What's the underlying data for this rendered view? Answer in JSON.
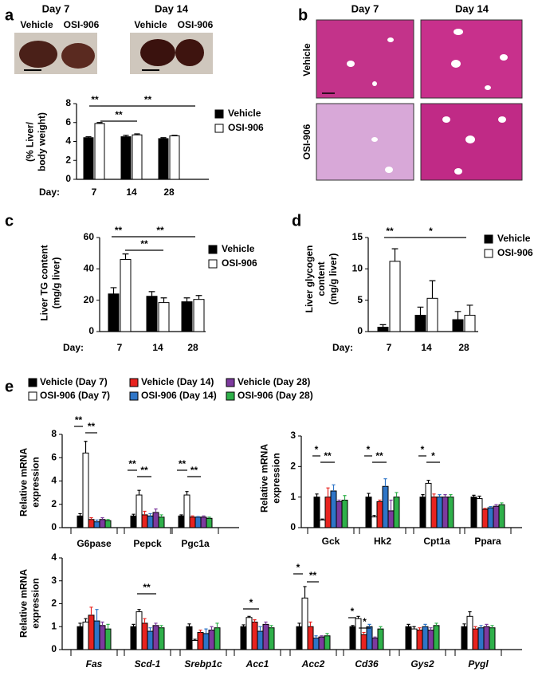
{
  "panel_labels": [
    "a",
    "b",
    "c",
    "d",
    "e"
  ],
  "photos": {
    "days": [
      "Day 7",
      "Day 14"
    ],
    "groups": [
      "Vehicle",
      "OSI-906"
    ]
  },
  "histology": {
    "days": [
      "Day 7",
      "Day 14"
    ],
    "groups": [
      "Vehicle",
      "OSI-906"
    ]
  },
  "chart_data": [
    {
      "type": "bar",
      "ylabel": [
        "(% Liver/",
        "body weight)"
      ],
      "x_label": "Day:",
      "categories": [
        "7",
        "14",
        "28"
      ],
      "series": [
        {
          "name": "Vehicle",
          "color": "#000000",
          "values": [
            4.4,
            4.5,
            4.3
          ],
          "errors": [
            0.1,
            0.15,
            0.1
          ]
        },
        {
          "name": "OSI-906",
          "color": "#ffffff",
          "values": [
            5.9,
            4.7,
            4.6
          ],
          "errors": [
            0.1,
            0.1,
            0.05
          ]
        }
      ],
      "ylim": [
        0,
        8
      ],
      "yticks": [
        0,
        2,
        4,
        6,
        8
      ],
      "annotations": [
        "**",
        "**",
        "**"
      ]
    },
    {
      "type": "bar",
      "ylabel": [
        "Liver TG content",
        "(mg/g liver)"
      ],
      "x_label": "Day:",
      "categories": [
        "7",
        "14",
        "28"
      ],
      "series": [
        {
          "name": "Vehicle",
          "color": "#000000",
          "values": [
            24,
            22.5,
            19
          ],
          "errors": [
            4,
            3,
            2.5
          ]
        },
        {
          "name": "OSI-906",
          "color": "#ffffff",
          "values": [
            46,
            18.5,
            20.5
          ],
          "errors": [
            3.5,
            3,
            2.5
          ]
        }
      ],
      "ylim": [
        0,
        60
      ],
      "yticks": [
        0,
        20,
        40,
        60
      ],
      "annotations": [
        "**",
        "**",
        "**"
      ]
    },
    {
      "type": "bar",
      "ylabel": [
        "Liver glycogen",
        "content",
        "(mg/g liver)"
      ],
      "x_label": "Day:",
      "categories": [
        "7",
        "14",
        "28"
      ],
      "series": [
        {
          "name": "Vehicle",
          "color": "#000000",
          "values": [
            0.7,
            2.6,
            1.9
          ],
          "errors": [
            0.4,
            1.3,
            1.3
          ]
        },
        {
          "name": "OSI-906",
          "color": "#ffffff",
          "values": [
            11.2,
            5.3,
            2.6
          ],
          "errors": [
            2,
            2.8,
            1.6
          ]
        }
      ],
      "ylim": [
        0,
        15
      ],
      "yticks": [
        0,
        5,
        10,
        15
      ],
      "annotations": [
        "**",
        "*"
      ]
    },
    {
      "type": "bar",
      "ylabel": [
        "Relative mRNA",
        "expression"
      ],
      "categories": [
        "G6pase",
        "Pepck",
        "Pgc1a"
      ],
      "series": [
        {
          "name": "Vehicle (Day 7)",
          "color": "#000000",
          "values": [
            1,
            1,
            1
          ],
          "errors": [
            0.2,
            0.15,
            0.1
          ]
        },
        {
          "name": "OSI-906 (Day 7)",
          "color": "#ffffff",
          "values": [
            6.4,
            2.8,
            2.8
          ],
          "errors": [
            1.0,
            0.4,
            0.3
          ]
        },
        {
          "name": "Vehicle (Day 14)",
          "color": "#e8231f",
          "values": [
            0.7,
            1.1,
            0.9
          ],
          "errors": [
            0.15,
            0.3,
            0.1
          ]
        },
        {
          "name": "OSI-906 (Day 14)",
          "color": "#2e75c7",
          "values": [
            0.5,
            1.0,
            0.9
          ],
          "errors": [
            0.15,
            0.2,
            0.05
          ]
        },
        {
          "name": "Vehicle (Day 28)",
          "color": "#7d3a9e",
          "values": [
            0.7,
            1.3,
            0.9
          ],
          "errors": [
            0.15,
            0.3,
            0.1
          ]
        },
        {
          "name": "OSI-906 (Day 28)",
          "color": "#2fb04a",
          "values": [
            0.6,
            0.9,
            0.8
          ],
          "errors": [
            0.1,
            0.2,
            0.1
          ]
        }
      ],
      "ylim": [
        0,
        8
      ],
      "yticks": [
        0,
        2,
        4,
        6,
        8
      ],
      "annotations": [
        "**",
        "**",
        "**",
        "**",
        "**",
        "**"
      ]
    },
    {
      "type": "bar",
      "ylabel": [
        "Relative mRNA",
        "expression"
      ],
      "categories": [
        "Gck",
        "Hk2",
        "Cpt1a",
        "Ppara"
      ],
      "series": [
        {
          "color": "#000000",
          "values": [
            1,
            1,
            1,
            1
          ],
          "errors": [
            0.1,
            0.12,
            0.08,
            0.06
          ]
        },
        {
          "color": "#ffffff",
          "values": [
            0.25,
            0.35,
            1.45,
            0.95
          ],
          "errors": [
            0.03,
            0.05,
            0.1,
            0.08
          ]
        },
        {
          "color": "#e8231f",
          "values": [
            1.0,
            0.85,
            1.0,
            0.6
          ],
          "errors": [
            0.3,
            0.05,
            0.1,
            0.03
          ]
        },
        {
          "color": "#2e75c7",
          "values": [
            1.2,
            1.35,
            1.0,
            0.65
          ],
          "errors": [
            0.2,
            0.25,
            0.08,
            0.04
          ]
        },
        {
          "color": "#7d3a9e",
          "values": [
            0.85,
            0.55,
            1.0,
            0.7
          ],
          "errors": [
            0.05,
            0.35,
            0.08,
            0.05
          ]
        },
        {
          "color": "#2fb04a",
          "values": [
            0.9,
            1.0,
            1.0,
            0.75
          ],
          "errors": [
            0.15,
            0.15,
            0.08,
            0.06
          ]
        }
      ],
      "ylim": [
        0,
        3
      ],
      "yticks": [
        0,
        1,
        2,
        3
      ],
      "annotations": [
        "*",
        "**",
        "*",
        "**",
        "*",
        "*"
      ]
    },
    {
      "type": "bar",
      "ylabel": [
        "Relative mRNA",
        "expression"
      ],
      "categories": [
        "Fas",
        "Scd-1",
        "Srebp1c",
        "Acc1",
        "Acc2",
        "Cd36",
        "Gys2",
        "Pygl"
      ],
      "series": [
        {
          "color": "#000000",
          "values": [
            1,
            1,
            1,
            1,
            1,
            1,
            1,
            1
          ],
          "errors": [
            0.15,
            0.1,
            0.12,
            0.08,
            0.15,
            0.05,
            0.1,
            0.12
          ]
        },
        {
          "color": "#ffffff",
          "values": [
            1.2,
            1.65,
            0.4,
            1.4,
            2.25,
            1.35,
            0.9,
            1.45
          ],
          "errors": [
            0.15,
            0.1,
            0.05,
            0.05,
            0.5,
            0.1,
            0.1,
            0.2
          ]
        },
        {
          "color": "#e8231f",
          "values": [
            1.5,
            1.15,
            0.75,
            1.2,
            1.0,
            0.65,
            0.85,
            0.9
          ],
          "errors": [
            0.35,
            0.2,
            0.1,
            0.1,
            0.2,
            0.1,
            0.1,
            0.1
          ]
        },
        {
          "color": "#2e75c7",
          "values": [
            1.25,
            0.8,
            0.7,
            0.8,
            0.5,
            1.0,
            1.0,
            0.95
          ],
          "errors": [
            0.5,
            0.15,
            0.2,
            0.2,
            0.1,
            0.1,
            0.1,
            0.1
          ]
        },
        {
          "color": "#7d3a9e",
          "values": [
            1.05,
            1.05,
            0.85,
            1.1,
            0.55,
            0.5,
            0.85,
            1.0
          ],
          "errors": [
            0.15,
            0.1,
            0.15,
            0.1,
            0.05,
            0.05,
            0.1,
            0.1
          ]
        },
        {
          "color": "#2fb04a",
          "values": [
            0.9,
            0.95,
            0.95,
            0.95,
            0.6,
            0.9,
            1.05,
            0.95
          ],
          "errors": [
            0.2,
            0.1,
            0.2,
            0.1,
            0.1,
            0.1,
            0.1,
            0.1
          ]
        }
      ],
      "ylim": [
        0,
        4
      ],
      "yticks": [
        0,
        1,
        2,
        3,
        4
      ],
      "annotations": [
        "**",
        "*",
        "*",
        "**",
        "*",
        "*"
      ]
    }
  ]
}
